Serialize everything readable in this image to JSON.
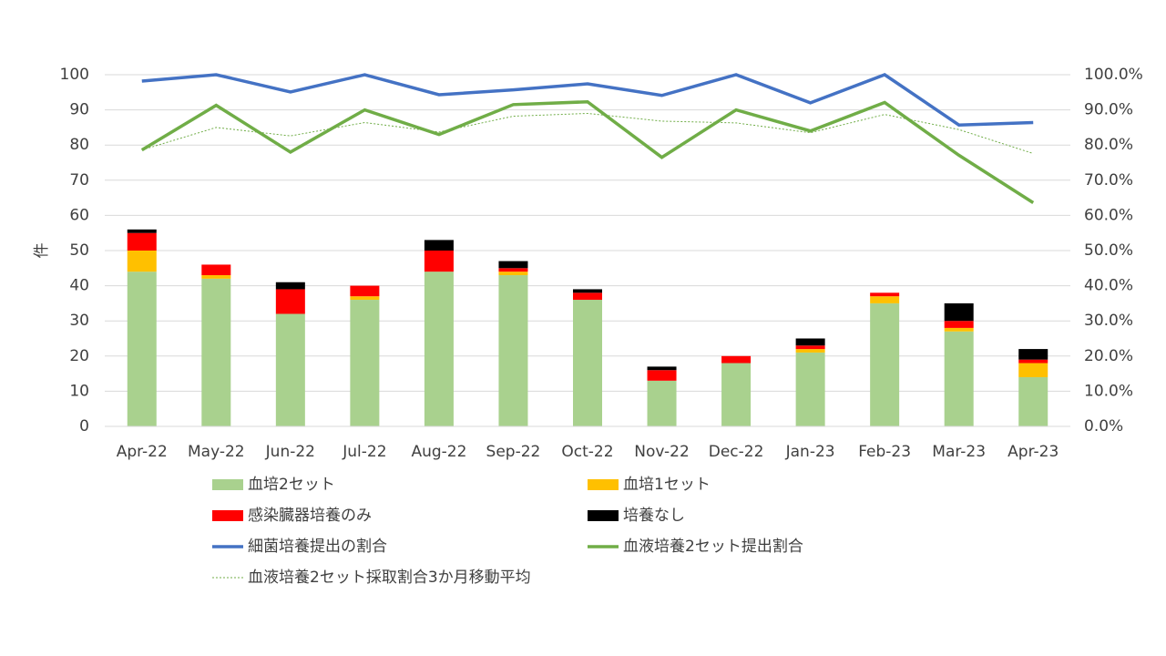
{
  "chart_data": {
    "type": "bar",
    "y_label": "件",
    "categories": [
      "Apr-22",
      "May-22",
      "Jun-22",
      "Jul-22",
      "Aug-22",
      "Sep-22",
      "Oct-22",
      "Nov-22",
      "Dec-22",
      "Jan-23",
      "Feb-23",
      "Mar-23",
      "Apr-23"
    ],
    "ylim": [
      0,
      100
    ],
    "yticks": [
      0,
      10,
      20,
      30,
      40,
      50,
      60,
      70,
      80,
      90,
      100
    ],
    "y2lim": [
      0,
      100
    ],
    "y2ticks": [
      {
        "value": 0,
        "label": "0.0%"
      },
      {
        "value": 10,
        "label": "10.0%"
      },
      {
        "value": 20,
        "label": "20.0%"
      },
      {
        "value": 30,
        "label": "30.0%"
      },
      {
        "value": 40,
        "label": "40.0%"
      },
      {
        "value": 50,
        "label": "50.0%"
      },
      {
        "value": 60,
        "label": "60.0%"
      },
      {
        "value": 70,
        "label": "70.0%"
      },
      {
        "value": 80,
        "label": "80.0%"
      },
      {
        "value": 90,
        "label": "90.0%"
      },
      {
        "value": 100,
        "label": "100.0%"
      }
    ],
    "grid": true,
    "stacked": true,
    "series": [
      {
        "name": "血培2セット",
        "type": "bar",
        "color": "#a9d18e",
        "values": [
          44,
          42,
          32,
          36,
          44,
          43,
          36,
          13,
          18,
          21,
          35,
          27,
          14
        ]
      },
      {
        "name": "血培1セット",
        "type": "bar",
        "color": "#ffc000",
        "values": [
          6,
          1,
          0,
          1,
          0,
          1,
          0,
          0,
          0,
          1,
          2,
          1,
          4
        ]
      },
      {
        "name": "感染臓器培養のみ",
        "type": "bar",
        "color": "#ff0000",
        "values": [
          5,
          3,
          7,
          3,
          6,
          1,
          2,
          3,
          2,
          1,
          1,
          2,
          1
        ]
      },
      {
        "name": "培養なし",
        "type": "bar",
        "color": "#000000",
        "values": [
          1,
          0,
          2,
          0,
          3,
          2,
          1,
          1,
          0,
          2,
          0,
          5,
          3
        ]
      },
      {
        "name": "細菌培養提出の割合",
        "type": "line",
        "axis": "y2",
        "color": "#4472c4",
        "style": "solid",
        "values": [
          98.2,
          100,
          95.1,
          100,
          94.3,
          95.7,
          97.4,
          94.1,
          100,
          92,
          100,
          85.7,
          86.4
        ]
      },
      {
        "name": "血液培養2セット提出割合",
        "type": "line",
        "axis": "y2",
        "color": "#70ad47",
        "style": "solid",
        "values": [
          78.6,
          91.3,
          78.0,
          90.0,
          83.0,
          91.5,
          92.3,
          76.5,
          90.0,
          84.0,
          92.1,
          77.1,
          63.6
        ]
      },
      {
        "name": "血液培養2セット採取割合3か月移動平均",
        "type": "line",
        "axis": "y2",
        "color": "#70ad47",
        "style": "dotted",
        "values": [
          78.6,
          85.0,
          82.6,
          86.4,
          83.7,
          88.2,
          89.0,
          86.8,
          86.3,
          83.5,
          88.7,
          84.4,
          77.6
        ]
      }
    ]
  }
}
